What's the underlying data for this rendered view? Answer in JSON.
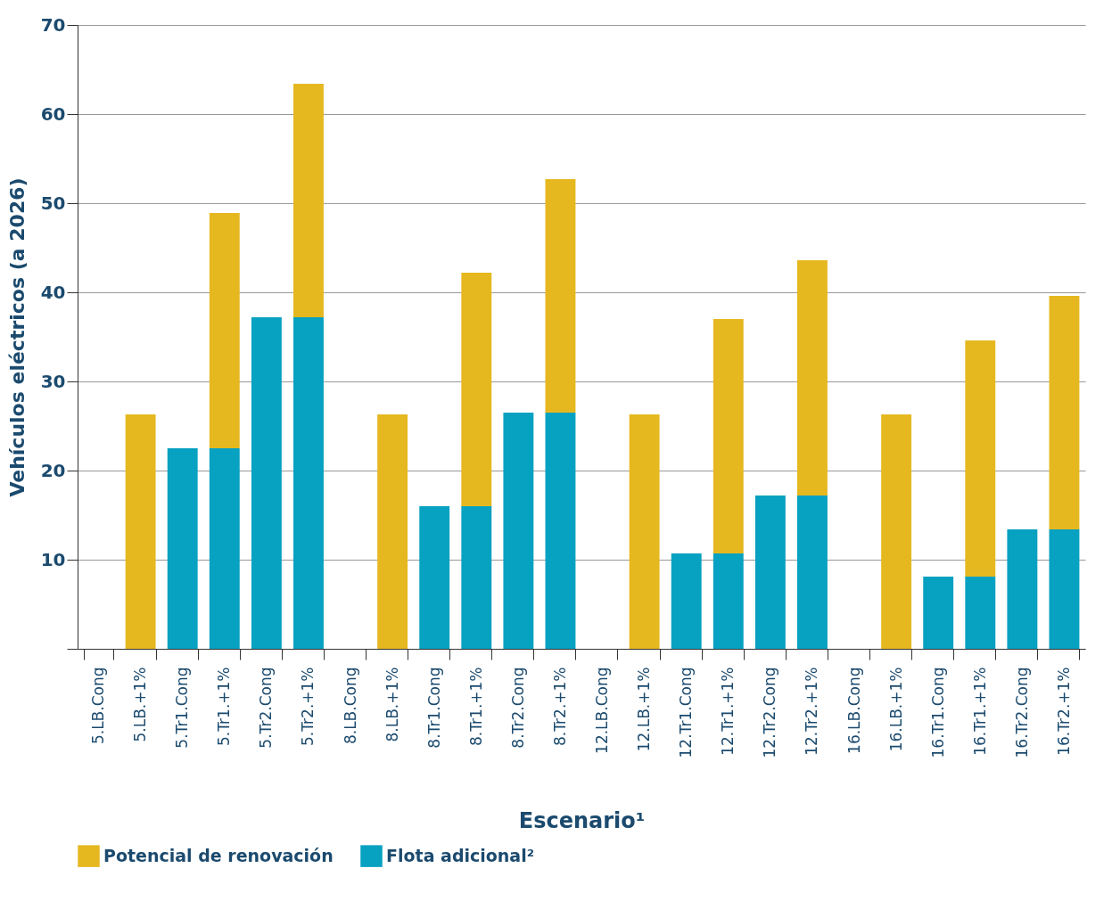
{
  "chart_data": {
    "type": "bar",
    "stacked": true,
    "xlabel": "Escenario¹",
    "ylabel": "Vehículos eléctricos (a 2026)",
    "categories": [
      "5.LB.Cong",
      "5.LB.+1%",
      "5.Tr1.Cong",
      "5.Tr1.+1%",
      "5.Tr2.Cong",
      "5.Tr2.+1%",
      "8.LB.Cong",
      "8.LB.+1%",
      "8.Tr1.Cong",
      "8.Tr1.+1%",
      "8.Tr2.Cong",
      "8.Tr2.+1%",
      "12.LB.Cong",
      "12.LB.+1%",
      "12.Tr1.Cong",
      "12.Tr1.+1%",
      "12.Tr2.Cong",
      "12.Tr2.+1%",
      "16.LB.Cong",
      "16.LB.+1%",
      "16.Tr1.Cong",
      "16.Tr1.+1%",
      "16.Tr2.Cong",
      "16.Tr2.+1%"
    ],
    "series": [
      {
        "name": "Flota adicional²",
        "color": "#07a1c1",
        "values": [
          0,
          0,
          22.5,
          22.5,
          37.2,
          37.2,
          0,
          0,
          16.0,
          16.0,
          26.5,
          26.5,
          0,
          0,
          10.7,
          10.7,
          17.2,
          17.2,
          0,
          0,
          8.1,
          8.1,
          13.4,
          13.4
        ]
      },
      {
        "name": "Potencial de renovación",
        "color": "#e6b820",
        "values": [
          0,
          26.3,
          0,
          26.4,
          0,
          26.2,
          0,
          26.3,
          0,
          26.2,
          0,
          26.2,
          0,
          26.3,
          0,
          26.3,
          0,
          26.4,
          0,
          26.3,
          0,
          26.5,
          0,
          26.2
        ]
      }
    ],
    "ylim": [
      0,
      70
    ],
    "yticks": [
      {
        "value": 0,
        "label": null
      },
      10,
      20,
      30,
      40,
      50,
      60,
      70
    ],
    "grid": "y",
    "legend": "bottom"
  }
}
